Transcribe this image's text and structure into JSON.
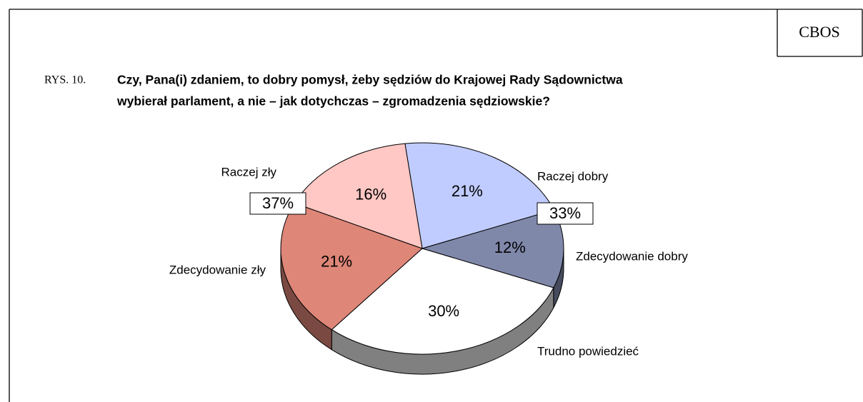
{
  "brand": "CBOS",
  "figure_number": "RYS. 10.",
  "chart_data": {
    "type": "pie",
    "title_lines": [
      "Czy, Pana(i) zdaniem, to dobry pomysł, żeby sędziów do Krajowej Rady Sądownictwa",
      "wybierał parlament, a nie – jak dotychczas – zgromadzenia sędziowskie?"
    ],
    "categories": [
      "Raczej dobry",
      "Zdecydowanie dobry",
      "Trudno powiedzieć",
      "Zdecydowanie zły",
      "Raczej zły"
    ],
    "values": [
      21,
      12,
      30,
      21,
      16
    ],
    "value_labels": [
      "21%",
      "12%",
      "30%",
      "21%",
      "16%"
    ],
    "colors": [
      "#c0ccff",
      "#8088aa",
      "#ffffff",
      "#de8678",
      "#ffc8c4"
    ],
    "group_totals": [
      {
        "value": 37,
        "label": "37%"
      },
      {
        "value": 33,
        "label": "33%"
      }
    ]
  }
}
